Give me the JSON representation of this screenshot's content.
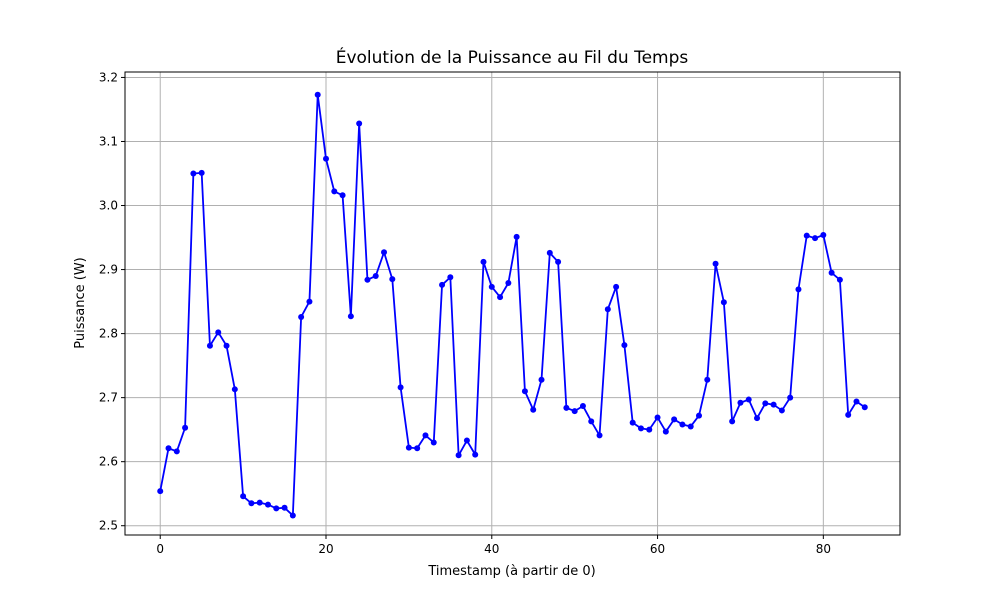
{
  "chart_data": {
    "type": "line",
    "title": "Évolution de la Puissance au Fil du Temps",
    "xlabel": "Timestamp (à partir de 0)",
    "ylabel": "Puissance (W)",
    "xlim": [
      -4.25,
      89.25
    ],
    "ylim": [
      2.4855,
      3.2085
    ],
    "xticks": [
      0,
      20,
      40,
      60,
      80
    ],
    "yticks": [
      2.5,
      2.6,
      2.7,
      2.8,
      2.9,
      3.0,
      3.1,
      3.2
    ],
    "xtick_labels": [
      "0",
      "20",
      "40",
      "60",
      "80"
    ],
    "ytick_labels": [
      "2.5",
      "2.6",
      "2.7",
      "2.8",
      "2.9",
      "3.0",
      "3.1",
      "3.2"
    ],
    "grid": true,
    "marker": "circle",
    "color": "#0000ff",
    "series": [
      {
        "x": [
          0,
          1,
          2,
          3,
          4,
          5,
          6,
          7,
          8,
          9,
          10,
          11,
          12,
          13,
          14,
          15,
          16,
          17,
          18,
          19,
          20,
          21,
          22,
          23,
          24,
          25,
          26,
          27,
          28,
          29,
          30,
          31,
          32,
          33,
          34,
          35,
          36,
          37,
          38,
          39,
          40,
          41,
          42,
          43,
          44,
          45,
          46,
          47,
          48,
          49,
          50,
          51,
          52,
          53,
          54,
          55,
          56,
          57,
          58,
          59,
          60,
          61,
          62,
          63,
          64,
          65,
          66,
          67,
          68,
          69,
          70,
          71,
          72,
          73,
          74,
          75,
          76,
          77,
          78,
          79,
          80,
          81,
          82,
          83,
          84,
          85
        ],
        "values": [
          2.554,
          2.621,
          2.616,
          2.653,
          3.05,
          3.051,
          2.781,
          2.802,
          2.781,
          2.713,
          2.546,
          2.535,
          2.536,
          2.533,
          2.527,
          2.528,
          2.516,
          2.826,
          2.85,
          3.173,
          3.073,
          3.022,
          3.016,
          2.827,
          3.128,
          2.884,
          2.89,
          2.927,
          2.885,
          2.716,
          2.622,
          2.621,
          2.641,
          2.63,
          2.876,
          2.888,
          2.61,
          2.633,
          2.611,
          2.912,
          2.873,
          2.857,
          2.879,
          2.951,
          2.71,
          2.681,
          2.728,
          2.926,
          2.912,
          2.684,
          2.679,
          2.687,
          2.663,
          2.641,
          2.838,
          2.873,
          2.782,
          2.661,
          2.652,
          2.65,
          2.669,
          2.647,
          2.666,
          2.658,
          2.655,
          2.672,
          2.728,
          2.909,
          2.849,
          2.663,
          2.692,
          2.697,
          2.668,
          2.691,
          2.689,
          2.68,
          2.7,
          2.869,
          2.953,
          2.949,
          2.954,
          2.895,
          2.884,
          2.673,
          2.694,
          2.685
        ]
      }
    ]
  }
}
